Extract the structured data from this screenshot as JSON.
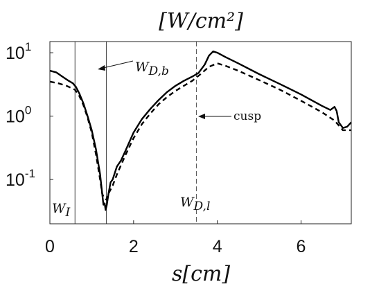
{
  "chart_data": {
    "type": "line",
    "title": "[W/cm²]",
    "xlabel": "s[cm]",
    "ylabel": "",
    "xlim": [
      0,
      7.2
    ],
    "ylim": [
      0.02,
      15
    ],
    "yscale": "log",
    "grid": false,
    "legend": "none",
    "x_ticks": [
      "0",
      "2",
      "4",
      "6"
    ],
    "y_ticks": [
      {
        "base": "10",
        "exp": "1",
        "value": 10
      },
      {
        "base": "10",
        "exp": "0",
        "value": 1
      },
      {
        "base": "10",
        "exp": "-1",
        "value": 0.1
      }
    ],
    "series": [
      {
        "style": "solid",
        "points": [
          [
            0,
            5.2
          ],
          [
            0.15,
            4.9
          ],
          [
            0.3,
            4.2
          ],
          [
            0.45,
            3.6
          ],
          [
            0.55,
            3.3
          ],
          [
            0.62,
            2.9
          ],
          [
            0.7,
            2.3
          ],
          [
            0.8,
            1.6
          ],
          [
            0.9,
            1.0
          ],
          [
            1.0,
            0.6
          ],
          [
            1.1,
            0.3
          ],
          [
            1.2,
            0.12
          ],
          [
            1.25,
            0.06
          ],
          [
            1.28,
            0.04
          ],
          [
            1.31,
            0.042
          ],
          [
            1.33,
            0.033
          ],
          [
            1.36,
            0.04
          ],
          [
            1.4,
            0.06
          ],
          [
            1.45,
            0.09
          ],
          [
            1.5,
            0.1
          ],
          [
            1.6,
            0.16
          ],
          [
            1.7,
            0.2
          ],
          [
            1.8,
            0.28
          ],
          [
            2.0,
            0.55
          ],
          [
            2.2,
            0.9
          ],
          [
            2.4,
            1.3
          ],
          [
            2.6,
            1.8
          ],
          [
            2.8,
            2.4
          ],
          [
            3.0,
            3.0
          ],
          [
            3.2,
            3.6
          ],
          [
            3.4,
            4.2
          ],
          [
            3.55,
            4.8
          ],
          [
            3.7,
            6.5
          ],
          [
            3.8,
            9.0
          ],
          [
            3.9,
            10.5
          ],
          [
            4.0,
            10.0
          ],
          [
            4.2,
            8.5
          ],
          [
            4.5,
            6.8
          ],
          [
            5.0,
            4.6
          ],
          [
            5.5,
            3.2
          ],
          [
            6.0,
            2.2
          ],
          [
            6.5,
            1.45
          ],
          [
            6.7,
            1.25
          ],
          [
            6.8,
            1.4
          ],
          [
            6.85,
            1.2
          ],
          [
            6.9,
            0.8
          ],
          [
            7.0,
            0.65
          ],
          [
            7.1,
            0.68
          ],
          [
            7.2,
            0.8
          ]
        ]
      },
      {
        "style": "dashed",
        "points": [
          [
            0,
            3.5
          ],
          [
            0.2,
            3.3
          ],
          [
            0.4,
            3.0
          ],
          [
            0.6,
            2.6
          ],
          [
            0.7,
            2.1
          ],
          [
            0.8,
            1.5
          ],
          [
            0.9,
            0.95
          ],
          [
            1.0,
            0.55
          ],
          [
            1.1,
            0.25
          ],
          [
            1.2,
            0.1
          ],
          [
            1.25,
            0.06
          ],
          [
            1.3,
            0.05
          ],
          [
            1.35,
            0.048
          ],
          [
            1.4,
            0.06
          ],
          [
            1.5,
            0.08
          ],
          [
            1.6,
            0.12
          ],
          [
            1.8,
            0.24
          ],
          [
            2.0,
            0.45
          ],
          [
            2.2,
            0.75
          ],
          [
            2.4,
            1.1
          ],
          [
            2.6,
            1.55
          ],
          [
            2.8,
            2.0
          ],
          [
            3.0,
            2.5
          ],
          [
            3.2,
            3.0
          ],
          [
            3.4,
            3.6
          ],
          [
            3.6,
            4.6
          ],
          [
            3.8,
            6.0
          ],
          [
            4.0,
            6.8
          ],
          [
            4.2,
            6.2
          ],
          [
            4.5,
            5.2
          ],
          [
            5.0,
            3.7
          ],
          [
            5.5,
            2.6
          ],
          [
            6.0,
            1.75
          ],
          [
            6.5,
            1.15
          ],
          [
            6.8,
            0.85
          ],
          [
            7.0,
            0.6
          ],
          [
            7.2,
            0.6
          ]
        ]
      }
    ],
    "vlines": [
      {
        "x": 0.6,
        "style": "solid"
      },
      {
        "x": 1.35,
        "style": "solid"
      },
      {
        "x": 3.5,
        "style": "dashed"
      }
    ],
    "annotations": [
      {
        "base": "W",
        "sub": "I"
      },
      {
        "base": "W",
        "sub": "D,b"
      },
      {
        "base": "W",
        "sub": "D,l"
      },
      {
        "text": "cusp"
      }
    ]
  }
}
